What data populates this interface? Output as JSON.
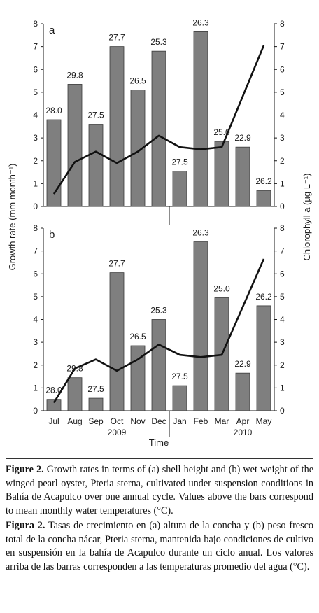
{
  "chart_data": {
    "type": "bar",
    "categories": [
      "Jul",
      "Aug",
      "Sep",
      "Oct",
      "Nov",
      "Dec",
      "Jan",
      "Feb",
      "Mar",
      "Apr",
      "May"
    ],
    "year_labels": [
      {
        "after_category": "Oct",
        "text": "2009"
      },
      {
        "after_category": "Apr",
        "text": "2010"
      }
    ],
    "xlabel": "Time",
    "ylabel_left": "Growth rate (mm month⁻¹)",
    "ylabel_right": "Chlorophyll a (µg L⁻¹)",
    "ylim": [
      0,
      8
    ],
    "y_ticks": [
      "0",
      "1",
      "2",
      "3",
      "4",
      "5",
      "6",
      "7",
      "8"
    ],
    "panels": [
      {
        "label": "a",
        "bar_series": {
          "name": "Growth rate",
          "values": [
            3.8,
            5.35,
            3.6,
            7.0,
            5.1,
            6.8,
            1.55,
            7.65,
            2.85,
            2.6,
            0.7
          ]
        },
        "temperature_labels": [
          "28.0",
          "29.8",
          "27.5",
          "27.7",
          "26.5",
          "25.3",
          "27.5",
          "26.3",
          "25.0",
          "22.9",
          "26.2"
        ],
        "line_series": {
          "name": "Chlorophyll a",
          "values": [
            0.55,
            1.95,
            2.4,
            1.9,
            2.4,
            3.1,
            2.6,
            2.5,
            2.6,
            null,
            7.05
          ]
        }
      },
      {
        "label": "b",
        "bar_series": {
          "name": "Growth rate",
          "values": [
            0.5,
            1.45,
            0.55,
            6.05,
            2.85,
            4.0,
            1.1,
            7.4,
            4.95,
            1.65,
            4.6
          ]
        },
        "temperature_labels": [
          "28.0",
          "29.8",
          "27.5",
          "27.7",
          "26.5",
          "25.3",
          "27.5",
          "26.3",
          "25.0",
          "22.9",
          "26.2"
        ],
        "line_series": {
          "name": "Chlorophyll a",
          "values": [
            0.35,
            1.85,
            2.25,
            1.75,
            2.25,
            2.9,
            2.45,
            2.35,
            2.45,
            null,
            6.65
          ]
        }
      }
    ]
  },
  "caption": {
    "en_label": "Figure 2.",
    "en_text": " Growth rates in terms of (a) shell height and (b) wet weight of the winged pearl oyster, Pteria sterna, cultivated under suspension conditions in Bahía de Acapulco over one annual cycle. Values above the bars correspond to mean monthly water temperatures (°C).",
    "es_label": "Figura 2.",
    "es_text": " Tasas de crecimiento en (a) altura de la concha y (b) peso fresco total de la concha nácar, Pteria sterna, mantenida bajo condiciones de cultivo en suspensión en la bahía de Acapulco durante un ciclo anual. Los valores arriba de las barras corresponden a las temperaturas promedio del agua (°C)."
  }
}
